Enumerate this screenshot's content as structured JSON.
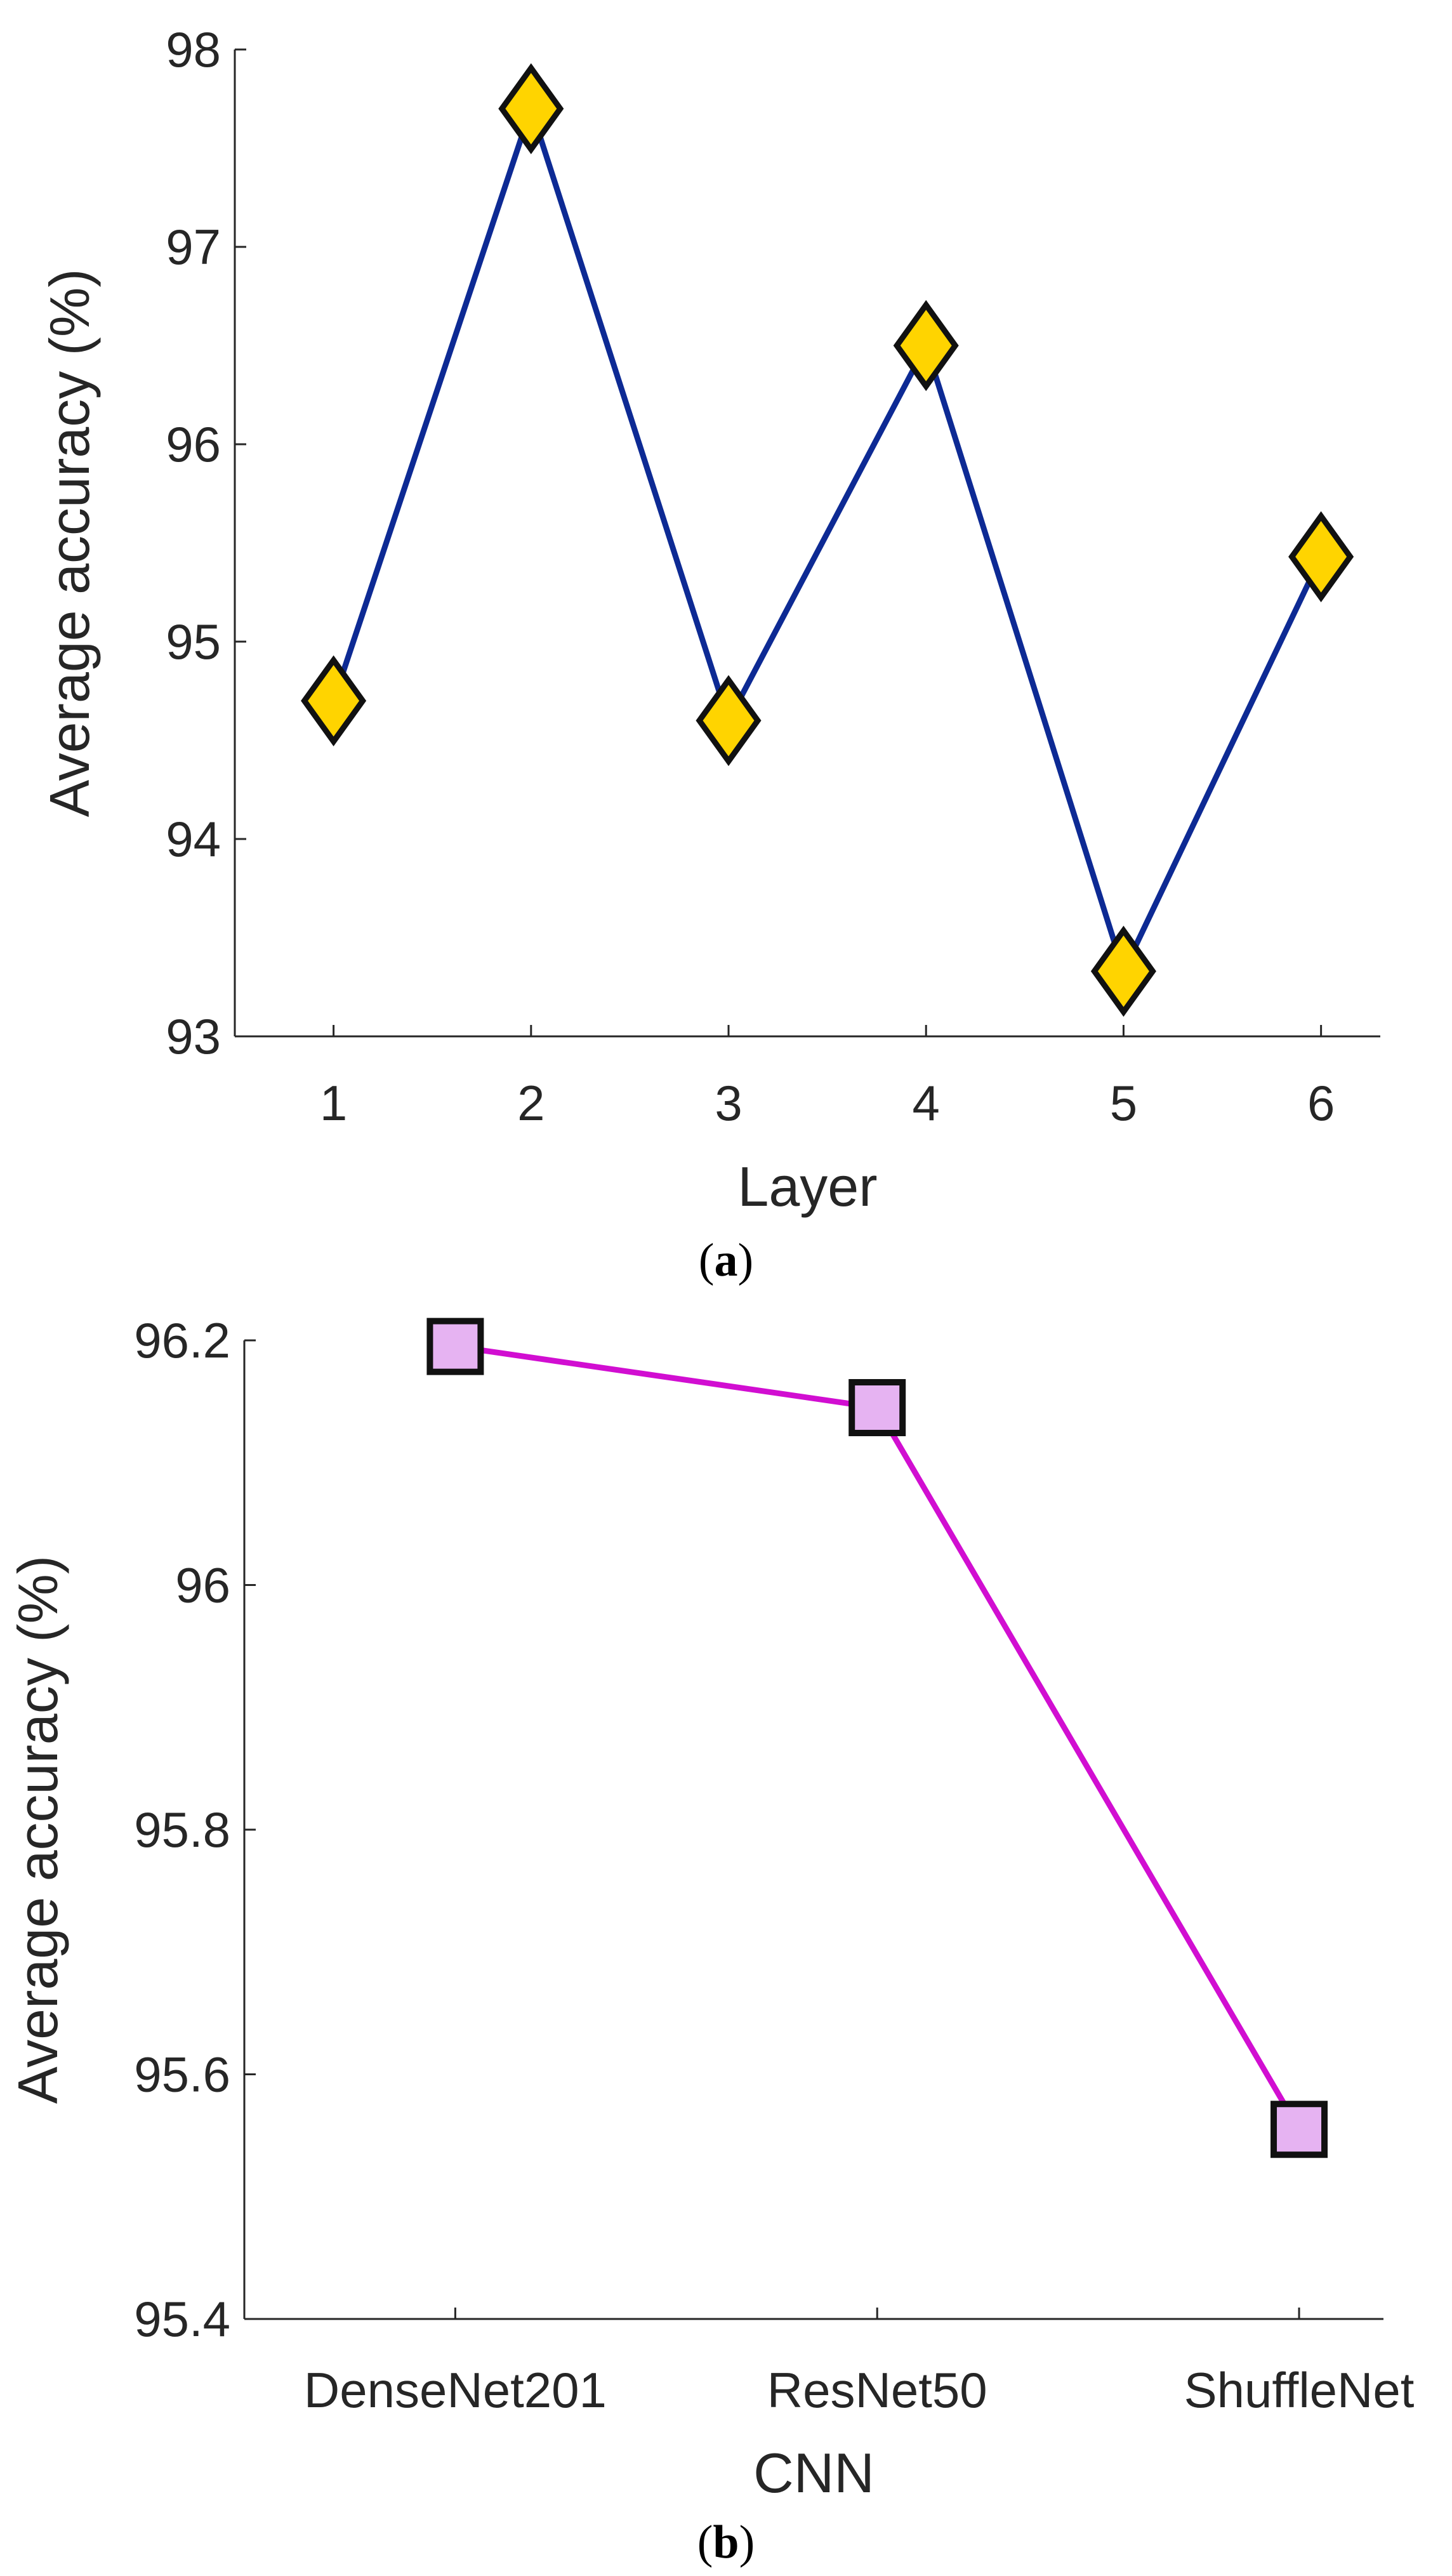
{
  "chart_data": [
    {
      "type": "line",
      "panel_label": "a",
      "title": "",
      "xlabel": "Layer",
      "ylabel": "Average accuracy (%)",
      "x": [
        1,
        2,
        3,
        4,
        5,
        6
      ],
      "x_tick_labels": [
        "1",
        "2",
        "3",
        "4",
        "5",
        "6"
      ],
      "xlim": [
        0.5,
        6.3
      ],
      "ylim": [
        93,
        98
      ],
      "y_ticks": [
        93,
        94,
        95,
        96,
        97,
        98
      ],
      "y_tick_labels": [
        "93",
        "94",
        "95",
        "96",
        "97",
        "98"
      ],
      "grid": false,
      "series": [
        {
          "name": "Average accuracy",
          "values": [
            94.7,
            97.7,
            94.6,
            96.5,
            93.33,
            95.43
          ],
          "line_color": "#0d2a94",
          "marker": "diamond",
          "marker_fill": "#ffd400",
          "marker_edge": "#111111"
        }
      ]
    },
    {
      "type": "line",
      "panel_label": "b",
      "title": "",
      "xlabel": "CNN",
      "ylabel": "Average accuracy (%)",
      "categories": [
        "DenseNet201",
        "ResNet50",
        "ShuffleNet"
      ],
      "xlim": [
        0.5,
        3.2
      ],
      "ylim": [
        95.4,
        96.2
      ],
      "y_ticks": [
        95.4,
        95.6,
        95.8,
        96,
        96.2
      ],
      "y_tick_labels": [
        "95.4",
        "95.6",
        "95.8",
        "96",
        "96.2"
      ],
      "grid": false,
      "series": [
        {
          "name": "Average accuracy",
          "values": [
            96.195,
            96.145,
            95.555
          ],
          "line_color": "#d10ed1",
          "marker": "square",
          "marker_fill": "#e6b3f2",
          "marker_edge": "#111111"
        }
      ]
    }
  ]
}
